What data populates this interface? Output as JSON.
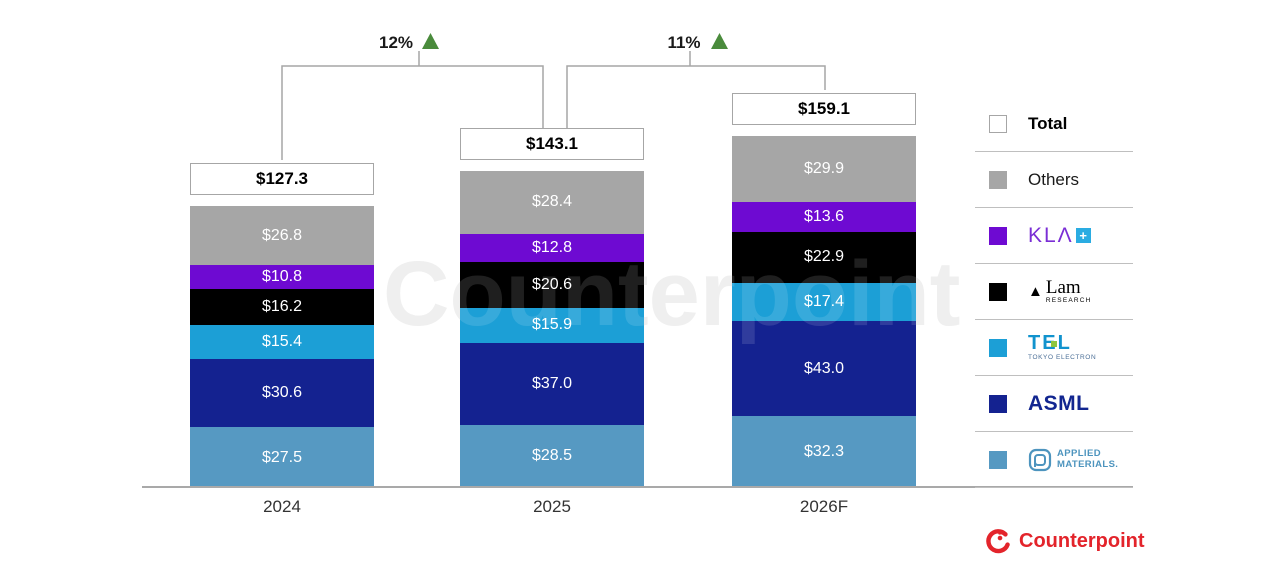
{
  "chart_data": {
    "type": "bar",
    "stacked": true,
    "grid": false,
    "legend_position": "right",
    "categories": [
      "2024",
      "2025",
      "2026F"
    ],
    "series": [
      {
        "name": "Others",
        "color": "#a6a6a6",
        "values": [
          26.8,
          28.4,
          29.9
        ],
        "labels": [
          "$26.8",
          "$28.4",
          "$29.9"
        ]
      },
      {
        "name": "KLA",
        "color": "#6e0ad2",
        "values": [
          10.8,
          12.8,
          13.6
        ],
        "labels": [
          "$10.8",
          "$12.8",
          "$13.6"
        ]
      },
      {
        "name": "Lam Research",
        "color": "#000000",
        "values": [
          16.2,
          20.6,
          22.9
        ],
        "labels": [
          "$16.2",
          "$20.6",
          "$22.9"
        ]
      },
      {
        "name": "TEL",
        "color": "#1c9fd6",
        "values": [
          15.4,
          15.9,
          17.4
        ],
        "labels": [
          "$15.4",
          "$15.9",
          "$17.4"
        ]
      },
      {
        "name": "ASML",
        "color": "#142290",
        "values": [
          30.6,
          37.0,
          43.0
        ],
        "labels": [
          "$30.6",
          "$37.0",
          "$43.0"
        ]
      },
      {
        "name": "Applied Materials",
        "color": "#5699c2",
        "values": [
          27.5,
          28.5,
          32.3
        ],
        "labels": [
          "$27.5",
          "$28.5",
          "$32.3"
        ]
      }
    ],
    "totals": {
      "values": [
        127.3,
        143.1,
        159.1
      ],
      "labels": [
        "$127.3",
        "$143.1",
        "$159.1"
      ]
    },
    "growth_callouts": [
      {
        "label": "12%",
        "direction": "up",
        "from": "2024",
        "to": "2025"
      },
      {
        "label": "11%",
        "direction": "up",
        "from": "2025",
        "to": "2026F"
      }
    ],
    "growth_arrow_color": "#4a8b3c"
  },
  "legend": {
    "items": [
      {
        "label": "Total",
        "swatch": "#ffffff",
        "swatch_border": "#a6a6a6"
      },
      {
        "label": "Others",
        "swatch": "#a6a6a6"
      },
      {
        "label": "KLA",
        "swatch": "#6e0ad2",
        "logo_letters": "KLΛ",
        "logo_plus": "+"
      },
      {
        "label": "Lam Research",
        "swatch": "#000000",
        "logo_triangle": "▲",
        "logo_name": "Lam",
        "logo_sub": "RESEARCH"
      },
      {
        "label": "TEL",
        "swatch": "#1c9fd6",
        "logo_t": "T",
        "logo_e": "E",
        "logo_l": "L",
        "logo_sub": "TOKYO ELECTRON"
      },
      {
        "label": "ASML",
        "swatch": "#142290",
        "logo_name": "ASML"
      },
      {
        "label": "Applied Materials",
        "swatch": "#5699c2",
        "logo_line1": "APPLIED",
        "logo_line2": "MATERIALS."
      }
    ]
  },
  "watermark": "Counterpoint",
  "branding": {
    "logo_text": "Counterpoint",
    "color": "#e3242b"
  }
}
